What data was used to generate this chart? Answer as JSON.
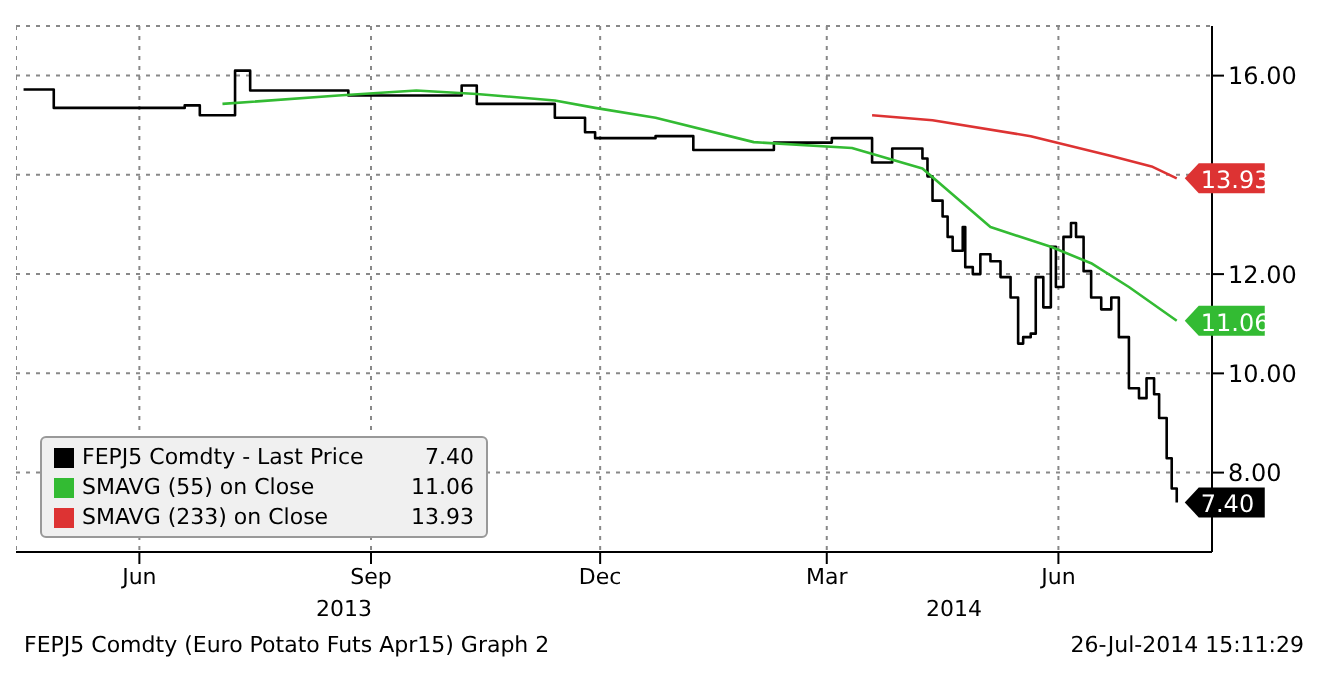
{
  "chart_data": {
    "type": "line",
    "xlim": [
      "2013-04-27",
      "2014-08-15"
    ],
    "xticks": [
      {
        "value": "2013-06-15",
        "label": "Jun"
      },
      {
        "value": "2013-09-15",
        "label": "Sep"
      },
      {
        "value": "2013-12-15",
        "label": "Dec"
      },
      {
        "value": "2014-03-15",
        "label": "Mar"
      },
      {
        "value": "2014-06-15",
        "label": "Jun"
      }
    ],
    "ylim": [
      6.4,
      17.0
    ],
    "yticks": [
      {
        "value": 8,
        "label": "8.00"
      },
      {
        "value": 10,
        "label": "10.00"
      },
      {
        "value": 12,
        "label": "12.00"
      },
      {
        "value": 14,
        "label": null
      },
      {
        "value": 16,
        "label": "16.00"
      }
    ],
    "grid": true,
    "legend": "bottom left",
    "series": [
      {
        "name": "FEPJ5 Comdty - Last Price",
        "type": "step",
        "color": "#000000",
        "x": [
          "2013-04-30",
          "2013-05-10",
          "2013-05-12",
          "2013-06-06",
          "2013-07-03",
          "2013-07-09",
          "2013-07-21",
          "2013-07-23",
          "2013-07-29",
          "2013-09-06",
          "2013-10-03",
          "2013-10-21",
          "2013-10-27",
          "2013-11-27",
          "2013-12-09",
          "2013-12-13",
          "2014-01-06",
          "2014-01-21",
          "2014-02-22",
          "2014-03-17",
          "2014-04-02",
          "2014-04-10",
          "2014-04-22",
          "2014-04-24",
          "2014-04-26",
          "2014-04-30",
          "2014-05-02",
          "2014-05-04",
          "2014-05-08",
          "2014-05-09",
          "2014-05-12",
          "2014-05-15",
          "2014-05-19",
          "2014-05-23",
          "2014-05-27",
          "2014-05-30",
          "2014-06-01",
          "2014-06-04",
          "2014-06-06",
          "2014-06-09",
          "2014-06-12",
          "2014-06-14",
          "2014-06-17",
          "2014-06-20",
          "2014-06-22",
          "2014-06-25",
          "2014-06-28",
          "2014-07-02",
          "2014-07-06",
          "2014-07-09",
          "2014-07-13",
          "2014-07-17",
          "2014-07-20",
          "2014-07-23",
          "2014-07-25",
          "2014-07-28",
          "2014-07-30",
          "2014-08-01"
        ],
        "values": [
          15.72,
          15.72,
          15.35,
          15.35,
          15.4,
          15.2,
          15.2,
          16.1,
          15.7,
          15.6,
          15.6,
          15.8,
          15.43,
          15.15,
          14.86,
          14.74,
          14.78,
          14.5,
          14.65,
          14.74,
          14.25,
          14.53,
          14.33,
          13.97,
          13.48,
          13.16,
          12.75,
          12.47,
          12.95,
          12.14,
          12.0,
          12.4,
          12.26,
          11.94,
          11.53,
          10.6,
          10.73,
          10.8,
          11.94,
          11.33,
          12.55,
          11.74,
          12.75,
          13.03,
          12.75,
          12.06,
          11.53,
          11.29,
          11.53,
          10.73,
          9.7,
          9.5,
          9.9,
          9.58,
          9.1,
          8.29,
          7.68,
          7.4
        ],
        "value_labels": [
          null,
          null,
          null,
          null,
          null,
          null,
          null,
          null,
          null,
          null,
          null,
          null,
          null,
          null,
          null,
          null,
          null,
          null,
          null,
          null,
          null,
          null,
          null,
          null,
          null,
          null,
          null,
          null,
          null,
          null,
          null,
          null,
          null,
          null,
          null,
          null,
          null,
          null,
          null,
          null,
          null,
          null,
          null,
          null,
          null,
          null,
          null,
          null,
          null,
          null,
          null,
          null,
          null,
          null,
          null,
          null,
          null,
          "7.40"
        ]
      },
      {
        "name": "SMAVG (55) on Close",
        "type": "line",
        "color": "#33bb33",
        "x": [
          "2013-07-18",
          "2013-09-02",
          "2013-10-03",
          "2013-10-27",
          "2013-11-27",
          "2013-12-13",
          "2014-01-06",
          "2014-02-14",
          "2014-03-25",
          "2014-04-22",
          "2014-05-19",
          "2014-06-12",
          "2014-06-28",
          "2014-07-13",
          "2014-08-01"
        ],
        "values": [
          15.43,
          15.6,
          15.7,
          15.63,
          15.5,
          15.35,
          15.15,
          14.66,
          14.54,
          14.13,
          12.95,
          12.55,
          12.22,
          11.74,
          11.06
        ],
        "value_labels": [
          null,
          null,
          null,
          null,
          null,
          null,
          null,
          null,
          null,
          null,
          null,
          null,
          null,
          null,
          "11.06"
        ]
      },
      {
        "name": "SMAVG (233) on Close",
        "type": "line",
        "color": "#dd3333",
        "x": [
          "2014-04-02",
          "2014-04-26",
          "2014-06-04",
          "2014-07-06",
          "2014-07-22",
          "2014-08-01"
        ],
        "values": [
          15.2,
          15.1,
          14.78,
          14.38,
          14.17,
          13.93
        ],
        "value_labels": [
          null,
          null,
          null,
          null,
          null,
          "13.93"
        ]
      }
    ],
    "annotations": [
      "2013",
      "2014",
      "FEPJ5 Comdty (Euro Potato Futs  Apr15) Graph 2",
      "26-Jul-2014 15:11:29"
    ]
  }
}
